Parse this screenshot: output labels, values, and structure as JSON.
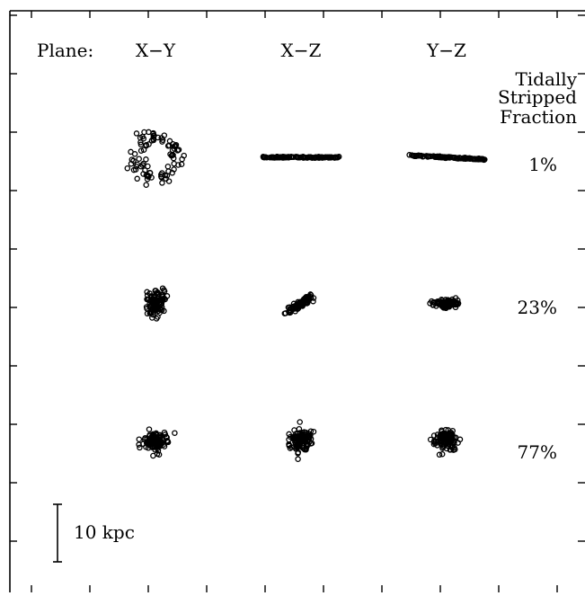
{
  "chart_data": {
    "type": "scatter",
    "title": "",
    "row_header": "Plane:",
    "planes": [
      "X−Y",
      "X−Z",
      "Y−Z"
    ],
    "fraction_header": [
      "Tidally",
      "Stripped",
      "Fraction"
    ],
    "scale_bar_label": "10 kpc",
    "scale_bar_kpc": 10,
    "grid": false,
    "tick_marks": true,
    "point_style": "open-circle",
    "point_color": "#000000",
    "panels": [
      {
        "row": 0,
        "fraction_label": "1%",
        "cells": [
          {
            "plane": "X−Y",
            "shape": "ring",
            "spread_x_kpc": 6.2,
            "spread_y_kpc": 6.2,
            "n": 90
          },
          {
            "plane": "X−Z",
            "shape": "thin-line",
            "spread_x_kpc": 7.8,
            "spread_y_kpc": 0.3,
            "tilt_deg": 0,
            "n": 120
          },
          {
            "plane": "Y−Z",
            "shape": "thin-line",
            "spread_x_kpc": 7.8,
            "spread_y_kpc": 0.3,
            "tilt_deg": 3,
            "n": 120
          }
        ]
      },
      {
        "row": 1,
        "fraction_label": "23%",
        "cells": [
          {
            "plane": "X−Y",
            "shape": "blob",
            "spread_x_kpc": 3.0,
            "spread_y_kpc": 4.0,
            "n": 110
          },
          {
            "plane": "X−Z",
            "shape": "tilted-streak",
            "spread_x_kpc": 5.5,
            "spread_y_kpc": 1.0,
            "tilt_deg": -30,
            "n": 110
          },
          {
            "plane": "Y−Z",
            "shape": "flattened",
            "spread_x_kpc": 4.0,
            "spread_y_kpc": 1.2,
            "tilt_deg": 0,
            "n": 110
          }
        ]
      },
      {
        "row": 2,
        "fraction_label": "77%",
        "cells": [
          {
            "plane": "X−Y",
            "shape": "blob",
            "spread_x_kpc": 4.0,
            "spread_y_kpc": 3.5,
            "n": 110
          },
          {
            "plane": "X−Z",
            "shape": "blob",
            "spread_x_kpc": 3.5,
            "spread_y_kpc": 4.0,
            "n": 110
          },
          {
            "plane": "Y−Z",
            "shape": "blob",
            "spread_x_kpc": 4.0,
            "spread_y_kpc": 3.5,
            "n": 110
          }
        ]
      }
    ]
  }
}
